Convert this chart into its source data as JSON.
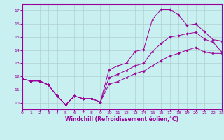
{
  "title": "",
  "xlabel": "Windchill (Refroidissement éolien,°C)",
  "xlim": [
    0,
    23
  ],
  "ylim": [
    9.5,
    17.5
  ],
  "yticks": [
    10,
    11,
    12,
    13,
    14,
    15,
    16,
    17
  ],
  "xticks": [
    0,
    1,
    2,
    3,
    4,
    5,
    6,
    7,
    8,
    9,
    10,
    11,
    12,
    13,
    14,
    15,
    16,
    17,
    18,
    19,
    20,
    21,
    22,
    23
  ],
  "bg_color": "#c8f0f0",
  "grid_color": "#b0d0d0",
  "line_color": "#990099",
  "line1_x": [
    0,
    1,
    2,
    3,
    4,
    5,
    6,
    7,
    8,
    9,
    10,
    11,
    12,
    13,
    14,
    15,
    16,
    17,
    18,
    19,
    20,
    21,
    22,
    23
  ],
  "line1_y": [
    11.8,
    11.65,
    11.65,
    11.35,
    10.5,
    9.85,
    10.5,
    10.3,
    10.3,
    10.05,
    12.5,
    12.8,
    13.0,
    13.9,
    14.05,
    16.35,
    17.1,
    17.1,
    16.7,
    15.9,
    16.0,
    15.4,
    14.8,
    14.7
  ],
  "line2_x": [
    0,
    1,
    2,
    3,
    4,
    5,
    6,
    7,
    8,
    9,
    10,
    11,
    12,
    13,
    14,
    15,
    16,
    17,
    18,
    19,
    20,
    21,
    22,
    23
  ],
  "line2_y": [
    11.8,
    11.65,
    11.65,
    11.35,
    10.5,
    9.85,
    10.5,
    10.3,
    10.3,
    10.05,
    11.9,
    12.15,
    12.45,
    12.8,
    13.0,
    13.9,
    14.5,
    15.0,
    15.1,
    15.25,
    15.35,
    14.85,
    14.6,
    13.85
  ],
  "line3_x": [
    0,
    1,
    2,
    3,
    4,
    5,
    6,
    7,
    8,
    9,
    10,
    11,
    12,
    13,
    14,
    15,
    16,
    17,
    18,
    19,
    20,
    21,
    22,
    23
  ],
  "line3_y": [
    11.8,
    11.65,
    11.65,
    11.35,
    10.5,
    9.85,
    10.5,
    10.3,
    10.3,
    10.05,
    11.4,
    11.6,
    11.9,
    12.2,
    12.4,
    12.8,
    13.2,
    13.55,
    13.75,
    14.0,
    14.2,
    13.85,
    13.75,
    13.75
  ]
}
